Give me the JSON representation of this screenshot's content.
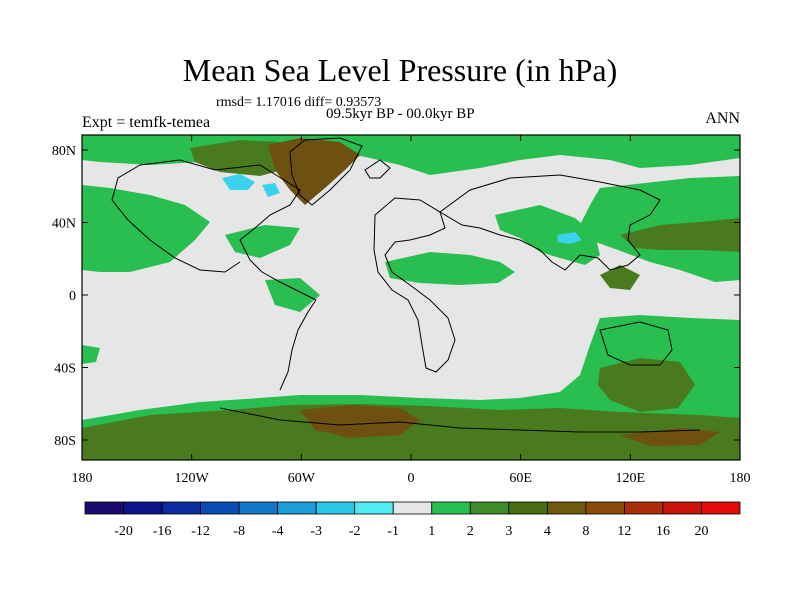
{
  "title": "Mean Sea Level Pressure (in hPa)",
  "stats": "rmsd= 1.17016 diff= 0.93573",
  "period": "09.5kyr BP - 00.0kyr BP",
  "experiment": "Expt = temfk-temea",
  "season": "ANN",
  "axes": {
    "lon_ticks": [
      "180",
      "120W",
      "60W",
      "0",
      "60E",
      "120E",
      "180"
    ],
    "lat_ticks": [
      "80N",
      "40N",
      "0",
      "40S",
      "80S"
    ]
  },
  "colorbar": {
    "colors": [
      "#1a0a6e",
      "#0c148c",
      "#0a2ea0",
      "#0a4cb4",
      "#1478c8",
      "#1e9ed8",
      "#28c8e6",
      "#50ecf0",
      "#e6e6e6",
      "#28c050",
      "#3c8c28",
      "#4a6e14",
      "#6e5a0a",
      "#8c4a0a",
      "#aa2e0a",
      "#c8140a",
      "#e60a0a"
    ],
    "labels": [
      "-20",
      "-16",
      "-12",
      "-8",
      "-4",
      "-3",
      "-2",
      "-1",
      "1",
      "2",
      "3",
      "4",
      "8",
      "12",
      "16",
      "20"
    ]
  },
  "map_colors": {
    "neutral": "#e6e6e6",
    "green": "#28be50",
    "olive": "#4a7a1e",
    "brown": "#6e5010",
    "cyan": "#3ad2ec"
  }
}
